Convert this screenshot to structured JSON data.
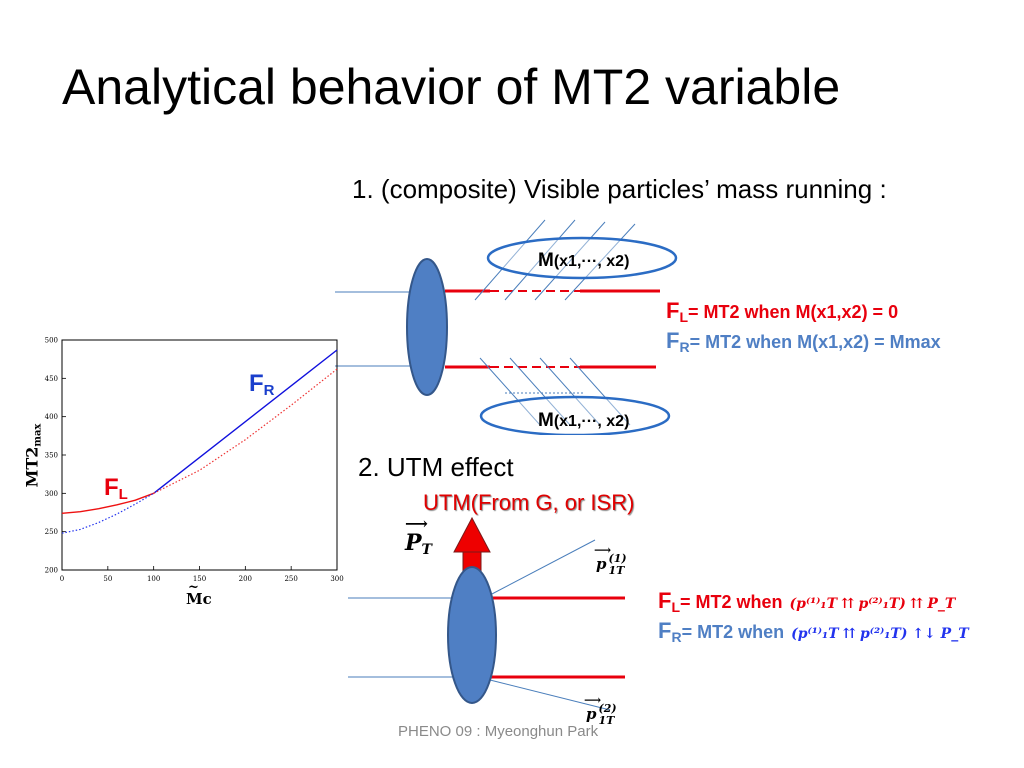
{
  "title": "Analytical behavior of MT2 variable",
  "item1": "1. (composite) Visible particles’ mass running :",
  "item2": "2. UTM effect",
  "utm_label": "UTM(From G, or ISR)",
  "top_diagram": {
    "mass_label_top": {
      "M": "M",
      "args": "(x1,···, x2)"
    },
    "mass_label_bottom": {
      "M": "M",
      "args": "(x1,···, x2)"
    },
    "fl": {
      "F": "F",
      "sub": "L",
      "text": "= MT2 when M(x1,x2) = 0"
    },
    "fr": {
      "F": "F",
      "sub": "R",
      "text": "= MT2 when M(x1,x2) = Mmax"
    }
  },
  "bottom_diagram": {
    "pt_label": "P",
    "pt_sub": "T",
    "p1_label": "p",
    "p1_sup": "(1)",
    "p1_sub": "1T",
    "p2_label": "p",
    "p2_sup": "(2)",
    "p2_sub": "1T",
    "fl": {
      "F": "F",
      "sub": "L",
      "text": "= MT2 when",
      "formula": "(p⁽¹⁾₁T ⇈ p⁽²⁾₁T) ⇈ P_T",
      "rel": "⇈"
    },
    "fr": {
      "F": "F",
      "sub": "R",
      "text": "= MT2 when",
      "formula": "(p⁽¹⁾₁T ⇈ p⁽²⁾₁T) ↑↓ P_T",
      "rel": "↑↓"
    }
  },
  "plot": {
    "fr_label": {
      "F": "F",
      "sub": "R"
    },
    "fl_label": {
      "F": "F",
      "sub": "L"
    },
    "ylabel_main": "MT2",
    "ylabel_sub": "max",
    "xlabel": "Mc",
    "xlabel_tilde": "~"
  },
  "chart_data": {
    "type": "line",
    "xlabel": "Mc",
    "ylabel": "MT2max",
    "xlim": [
      0,
      300
    ],
    "ylim": [
      200,
      500
    ],
    "xticks": [
      0,
      50,
      100,
      150,
      200,
      250,
      300
    ],
    "yticks": [
      200,
      250,
      300,
      350,
      400,
      450,
      500
    ],
    "series": [
      {
        "name": "F_R",
        "style": "solid",
        "color": "#1010dd",
        "x": [
          100,
          300
        ],
        "y": [
          300,
          487
        ]
      },
      {
        "name": "F_L",
        "style": "solid",
        "color": "#ee1111",
        "x": [
          0,
          20,
          40,
          60,
          80,
          100
        ],
        "y": [
          274,
          276,
          280,
          285,
          291,
          300
        ]
      },
      {
        "name": "F_R (low)",
        "style": "dotted",
        "color": "#2233ee",
        "x": [
          0,
          20,
          40,
          60,
          80,
          100
        ],
        "y": [
          248,
          253,
          262,
          273,
          286,
          300
        ]
      },
      {
        "name": "F_L (high)",
        "style": "dotted",
        "color": "#ee3333",
        "x": [
          100,
          150,
          200,
          250,
          300
        ],
        "y": [
          300,
          330,
          370,
          415,
          462
        ]
      }
    ]
  },
  "footer": "PHENO 09 : Myeonghun Park"
}
